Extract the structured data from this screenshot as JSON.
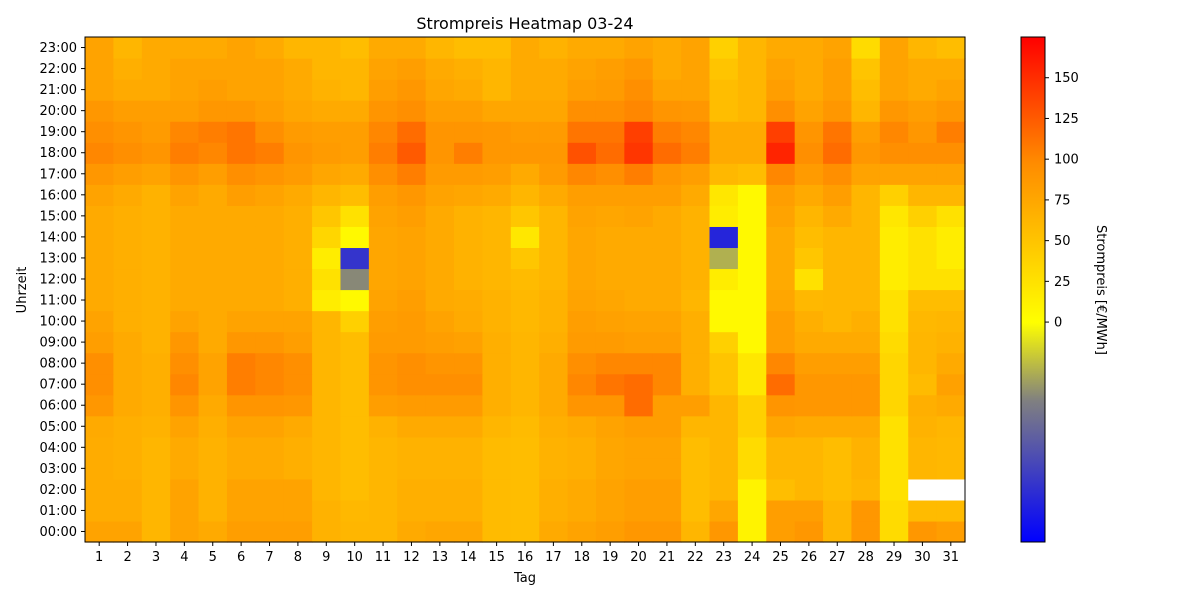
{
  "chart_data": {
    "type": "heatmap",
    "title": "Strompreis Heatmap 03-24",
    "xlabel": "Tag",
    "ylabel": "Uhrzeit",
    "colorbar_label": "Strompreis [€/MWh]",
    "x_categories": [
      "1",
      "2",
      "3",
      "4",
      "5",
      "6",
      "7",
      "8",
      "9",
      "10",
      "11",
      "12",
      "13",
      "14",
      "15",
      "16",
      "17",
      "18",
      "19",
      "20",
      "21",
      "22",
      "23",
      "24",
      "25",
      "26",
      "27",
      "28",
      "29",
      "30",
      "31"
    ],
    "y_categories": [
      "00:00",
      "01:00",
      "02:00",
      "03:00",
      "04:00",
      "05:00",
      "06:00",
      "07:00",
      "08:00",
      "09:00",
      "10:00",
      "11:00",
      "12:00",
      "13:00",
      "14:00",
      "15:00",
      "16:00",
      "17:00",
      "18:00",
      "19:00",
      "20:00",
      "21:00",
      "22:00",
      "23:00"
    ],
    "colorbar_ticks": [
      0,
      25,
      50,
      75,
      100,
      125,
      150
    ],
    "colorbar_range": [
      -135,
      175
    ],
    "colormap": [
      "#0000ff",
      "#808080",
      "#ffff00",
      "#ff8c00",
      "#ff0000"
    ],
    "missing_color": "#ffffff",
    "grid": false,
    "values_by_hour": [
      [
        78,
        78,
        62,
        78,
        72,
        82,
        82,
        82,
        65,
        62,
        62,
        72,
        75,
        75,
        58,
        56,
        72,
        78,
        82,
        88,
        88,
        62,
        88,
        10,
        82,
        88,
        62,
        88,
        30,
        88,
        82
      ],
      [
        70,
        70,
        62,
        78,
        65,
        78,
        78,
        78,
        65,
        60,
        62,
        68,
        68,
        68,
        58,
        56,
        68,
        72,
        78,
        82,
        82,
        56,
        75,
        10,
        82,
        82,
        62,
        88,
        30,
        58,
        58
      ],
      [
        70,
        70,
        62,
        78,
        65,
        78,
        78,
        78,
        62,
        56,
        62,
        68,
        68,
        68,
        58,
        56,
        68,
        72,
        78,
        82,
        82,
        56,
        62,
        10,
        55,
        62,
        56,
        62,
        25,
        null,
        null
      ],
      [
        70,
        68,
        62,
        72,
        65,
        72,
        72,
        68,
        62,
        56,
        62,
        65,
        65,
        65,
        58,
        56,
        65,
        68,
        75,
        78,
        78,
        56,
        62,
        30,
        62,
        62,
        56,
        65,
        25,
        62,
        60
      ],
      [
        70,
        68,
        62,
        72,
        65,
        72,
        72,
        68,
        62,
        56,
        62,
        65,
        65,
        65,
        58,
        56,
        65,
        68,
        75,
        78,
        78,
        56,
        62,
        30,
        62,
        62,
        56,
        65,
        25,
        62,
        60
      ],
      [
        72,
        68,
        65,
        78,
        68,
        78,
        78,
        72,
        62,
        56,
        65,
        72,
        72,
        72,
        62,
        58,
        68,
        72,
        78,
        82,
        82,
        62,
        62,
        40,
        75,
        72,
        72,
        72,
        25,
        65,
        62
      ],
      [
        88,
        72,
        68,
        90,
        72,
        90,
        90,
        88,
        62,
        56,
        82,
        85,
        85,
        85,
        68,
        62,
        72,
        90,
        90,
        115,
        82,
        82,
        62,
        40,
        90,
        88,
        88,
        88,
        35,
        68,
        72
      ],
      [
        95,
        72,
        68,
        100,
        78,
        105,
        100,
        95,
        62,
        56,
        90,
        95,
        95,
        95,
        68,
        62,
        72,
        100,
        110,
        115,
        100,
        68,
        50,
        20,
        115,
        88,
        88,
        88,
        35,
        58,
        80
      ],
      [
        95,
        72,
        68,
        95,
        78,
        105,
        100,
        95,
        62,
        56,
        90,
        95,
        90,
        90,
        68,
        62,
        72,
        95,
        100,
        100,
        100,
        68,
        50,
        20,
        100,
        82,
        82,
        82,
        35,
        62,
        72
      ],
      [
        82,
        72,
        65,
        88,
        72,
        88,
        88,
        82,
        62,
        56,
        85,
        85,
        82,
        80,
        68,
        62,
        68,
        85,
        85,
        82,
        82,
        68,
        40,
        5,
        82,
        72,
        72,
        72,
        30,
        62,
        65
      ],
      [
        78,
        68,
        65,
        78,
        72,
        78,
        78,
        78,
        62,
        40,
        82,
        85,
        78,
        72,
        65,
        60,
        65,
        82,
        80,
        78,
        78,
        68,
        5,
        5,
        82,
        68,
        62,
        68,
        25,
        60,
        62
      ],
      [
        72,
        68,
        65,
        72,
        72,
        72,
        72,
        68,
        15,
        5,
        78,
        82,
        72,
        70,
        65,
        60,
        65,
        78,
        75,
        72,
        72,
        62,
        5,
        5,
        75,
        60,
        62,
        62,
        25,
        56,
        56
      ],
      [
        72,
        68,
        65,
        72,
        72,
        72,
        72,
        68,
        25,
        -45,
        75,
        78,
        72,
        65,
        62,
        58,
        62,
        75,
        72,
        72,
        72,
        65,
        15,
        5,
        72,
        25,
        62,
        62,
        15,
        25,
        25
      ],
      [
        72,
        68,
        65,
        72,
        72,
        72,
        72,
        68,
        15,
        -100,
        75,
        78,
        72,
        65,
        62,
        48,
        62,
        75,
        72,
        72,
        72,
        65,
        -30,
        5,
        72,
        48,
        62,
        62,
        15,
        25,
        15
      ],
      [
        72,
        68,
        65,
        72,
        72,
        72,
        72,
        68,
        35,
        5,
        75,
        78,
        72,
        65,
        62,
        20,
        62,
        75,
        72,
        72,
        72,
        65,
        -110,
        5,
        72,
        56,
        62,
        62,
        15,
        25,
        15
      ],
      [
        72,
        68,
        65,
        72,
        72,
        72,
        72,
        68,
        48,
        25,
        78,
        82,
        72,
        65,
        62,
        48,
        62,
        78,
        75,
        78,
        72,
        65,
        15,
        5,
        78,
        62,
        72,
        62,
        20,
        40,
        25
      ],
      [
        78,
        72,
        65,
        78,
        72,
        82,
        78,
        72,
        62,
        56,
        82,
        88,
        78,
        75,
        72,
        62,
        72,
        82,
        82,
        82,
        82,
        72,
        20,
        5,
        82,
        72,
        82,
        62,
        40,
        62,
        62
      ],
      [
        88,
        82,
        78,
        90,
        82,
        95,
        90,
        85,
        75,
        72,
        95,
        105,
        85,
        85,
        82,
        72,
        85,
        100,
        95,
        105,
        88,
        82,
        60,
        56,
        100,
        85,
        95,
        78,
        78,
        78,
        78
      ],
      [
        100,
        95,
        90,
        105,
        100,
        110,
        105,
        90,
        85,
        82,
        105,
        125,
        90,
        105,
        88,
        88,
        88,
        130,
        115,
        145,
        115,
        105,
        72,
        72,
        155,
        95,
        115,
        88,
        95,
        95,
        95
      ],
      [
        95,
        90,
        85,
        100,
        105,
        110,
        95,
        85,
        82,
        82,
        100,
        115,
        90,
        90,
        88,
        85,
        85,
        110,
        110,
        140,
        105,
        100,
        72,
        72,
        140,
        90,
        110,
        82,
        100,
        88,
        105
      ],
      [
        88,
        82,
        82,
        82,
        88,
        88,
        82,
        75,
        72,
        72,
        90,
        95,
        82,
        82,
        75,
        75,
        75,
        95,
        95,
        100,
        90,
        88,
        56,
        62,
        95,
        78,
        88,
        62,
        88,
        82,
        88
      ],
      [
        78,
        72,
        72,
        78,
        82,
        78,
        78,
        72,
        65,
        62,
        82,
        88,
        75,
        72,
        62,
        72,
        72,
        82,
        85,
        95,
        78,
        78,
        56,
        62,
        82,
        72,
        82,
        56,
        78,
        72,
        78
      ],
      [
        78,
        68,
        72,
        78,
        78,
        78,
        78,
        72,
        62,
        62,
        78,
        82,
        72,
        68,
        62,
        72,
        72,
        78,
        82,
        88,
        72,
        78,
        50,
        62,
        78,
        72,
        82,
        50,
        78,
        72,
        72
      ],
      [
        78,
        62,
        72,
        72,
        72,
        78,
        72,
        62,
        62,
        56,
        72,
        72,
        62,
        56,
        56,
        72,
        65,
        72,
        72,
        78,
        72,
        78,
        40,
        62,
        72,
        72,
        78,
        30,
        78,
        62,
        56
      ]
    ]
  }
}
